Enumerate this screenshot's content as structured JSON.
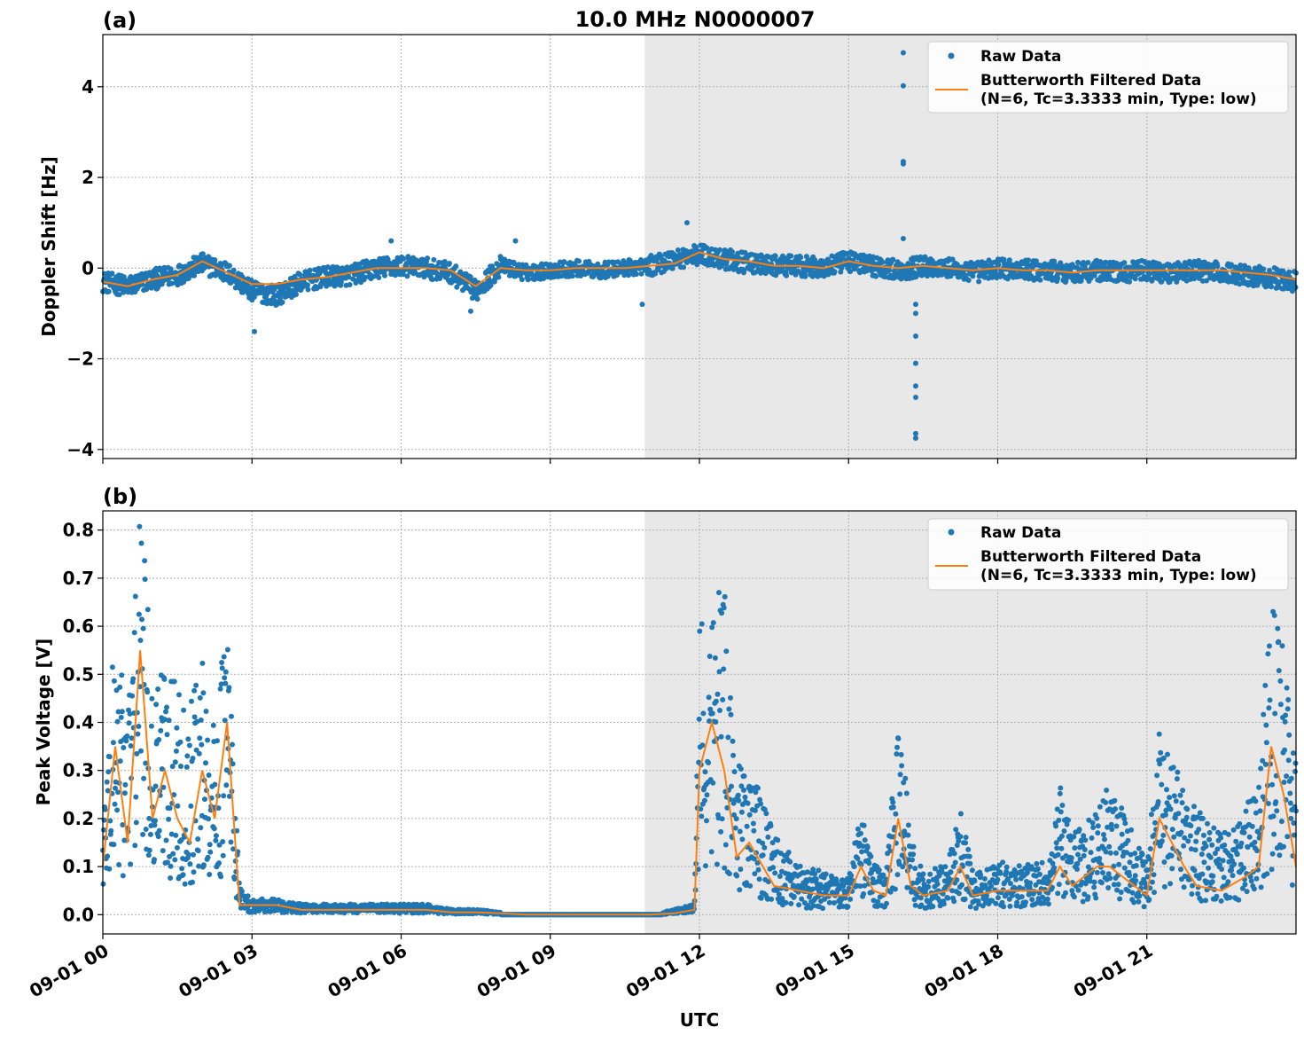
{
  "figure": {
    "title": "10.0 MHz N0000007",
    "xlabel": "UTC",
    "x_tick_labels": [
      "09-01 00",
      "09-01 03",
      "09-01 06",
      "09-01 09",
      "09-01 12",
      "09-01 15",
      "09-01 18",
      "09-01 21"
    ],
    "colors": {
      "raw": "#1f77b4",
      "filtered": "#ff7f0e",
      "night_shade": "#e8e8e8"
    }
  },
  "chart_data": [
    {
      "type": "scatter",
      "panel_label": "(a)",
      "title": "10.0 MHz N0000007",
      "xlabel": "",
      "ylabel": "Doppler Shift [Hz]",
      "x_unit": "hours UTC since 09-01 00",
      "xlim": [
        0,
        24
      ],
      "ylim": [
        -4.2,
        5.15
      ],
      "y_ticks": [
        4,
        2,
        0,
        -2,
        -4
      ],
      "y_tick_labels": [
        "4",
        "2",
        "0",
        "−2",
        "−4"
      ],
      "grid": true,
      "legend_position": "upper-right",
      "shaded_region_x": [
        10.9,
        24
      ],
      "series": [
        {
          "name": "Raw Data",
          "style": "points",
          "x": [
            0.0,
            0.5,
            1.0,
            1.5,
            2.0,
            2.5,
            3.0,
            3.5,
            4.0,
            4.5,
            5.0,
            5.5,
            6.0,
            6.5,
            7.0,
            7.5,
            8.0,
            8.5,
            9.0,
            9.5,
            10.0,
            10.5,
            11.0,
            11.5,
            12.0,
            12.5,
            13.0,
            13.5,
            14.0,
            14.5,
            15.0,
            15.5,
            16.0,
            16.5,
            17.0,
            17.5,
            18.0,
            18.5,
            19.0,
            19.5,
            20.0,
            20.5,
            21.0,
            21.5,
            22.0,
            22.5,
            23.0,
            23.5,
            24.0
          ],
          "y": [
            -0.3,
            -0.4,
            -0.25,
            -0.15,
            0.1,
            -0.1,
            -0.5,
            -0.6,
            -0.3,
            -0.2,
            -0.15,
            0.0,
            0.05,
            0.0,
            -0.1,
            -0.5,
            0.05,
            -0.1,
            -0.05,
            0.0,
            -0.05,
            0.0,
            0.05,
            0.2,
            0.3,
            0.2,
            0.1,
            0.05,
            0.05,
            0.0,
            0.15,
            0.05,
            -0.05,
            0.05,
            0.0,
            -0.1,
            0.0,
            -0.05,
            -0.05,
            -0.1,
            -0.05,
            -0.1,
            -0.05,
            -0.1,
            -0.05,
            -0.1,
            -0.15,
            -0.2,
            -0.3
          ],
          "outliers": [
            {
              "x": 16.1,
              "y": 4.75
            },
            {
              "x": 16.1,
              "y": 4.02
            },
            {
              "x": 16.1,
              "y": 2.35
            },
            {
              "x": 16.1,
              "y": 2.3
            },
            {
              "x": 16.1,
              "y": 0.65
            },
            {
              "x": 16.35,
              "y": -0.8
            },
            {
              "x": 16.35,
              "y": -1.0
            },
            {
              "x": 16.35,
              "y": -1.5
            },
            {
              "x": 16.35,
              "y": -2.1
            },
            {
              "x": 16.35,
              "y": -2.6
            },
            {
              "x": 16.35,
              "y": -2.85
            },
            {
              "x": 16.35,
              "y": -3.65
            },
            {
              "x": 16.35,
              "y": -3.75
            },
            {
              "x": 11.75,
              "y": 1.0
            },
            {
              "x": 8.3,
              "y": 0.6
            },
            {
              "x": 5.8,
              "y": 0.6
            },
            {
              "x": 3.05,
              "y": -1.4
            },
            {
              "x": 7.4,
              "y": -0.95
            },
            {
              "x": 10.85,
              "y": -0.8
            }
          ]
        },
        {
          "name": "Butterworth Filtered Data\n(N=6, Tc=3.3333 min, Type: low)",
          "style": "line",
          "x": [
            0.0,
            0.5,
            1.0,
            1.5,
            2.0,
            2.5,
            3.0,
            3.5,
            4.0,
            4.5,
            5.0,
            5.5,
            6.0,
            6.5,
            7.0,
            7.5,
            8.0,
            8.5,
            9.0,
            9.5,
            10.0,
            10.5,
            11.0,
            11.5,
            12.0,
            12.5,
            13.0,
            13.5,
            14.0,
            14.5,
            15.0,
            15.5,
            16.0,
            16.5,
            17.0,
            17.5,
            18.0,
            18.5,
            19.0,
            19.5,
            20.0,
            20.5,
            21.0,
            21.5,
            22.0,
            22.5,
            23.0,
            23.5,
            24.0
          ],
          "y": [
            -0.3,
            -0.4,
            -0.25,
            -0.15,
            0.15,
            -0.1,
            -0.35,
            -0.35,
            -0.25,
            -0.2,
            -0.1,
            0.0,
            0.0,
            0.0,
            -0.05,
            -0.4,
            0.0,
            -0.05,
            -0.05,
            0.0,
            0.0,
            0.0,
            0.05,
            0.1,
            0.35,
            0.2,
            0.15,
            0.05,
            0.05,
            0.0,
            0.15,
            0.05,
            0.0,
            0.05,
            0.0,
            -0.05,
            0.0,
            -0.05,
            -0.05,
            -0.1,
            -0.05,
            -0.05,
            -0.05,
            -0.05,
            -0.05,
            -0.05,
            -0.1,
            -0.15,
            -0.25
          ]
        }
      ]
    },
    {
      "type": "scatter",
      "panel_label": "(b)",
      "title": "",
      "xlabel": "UTC",
      "ylabel": "Peak Voltage [V]",
      "x_unit": "hours UTC since 09-01 00",
      "xlim": [
        0,
        24
      ],
      "ylim": [
        -0.04,
        0.84
      ],
      "y_ticks": [
        0.0,
        0.1,
        0.2,
        0.3,
        0.4,
        0.5,
        0.6,
        0.7,
        0.8
      ],
      "y_tick_labels": [
        "0.0",
        "0.1",
        "0.2",
        "0.3",
        "0.4",
        "0.5",
        "0.6",
        "0.7",
        "0.8"
      ],
      "grid": true,
      "legend_position": "upper-right",
      "shaded_region_x": [
        10.9,
        24
      ],
      "series": [
        {
          "name": "Raw Data",
          "style": "points",
          "x": [
            0.0,
            0.25,
            0.5,
            0.75,
            1.0,
            1.25,
            1.5,
            1.75,
            2.0,
            2.25,
            2.5,
            2.75,
            3.0,
            3.5,
            4.0,
            4.5,
            5.0,
            5.5,
            6.0,
            6.5,
            7.0,
            7.5,
            8.0,
            8.5,
            9.0,
            9.5,
            10.0,
            10.5,
            11.0,
            11.5,
            11.9,
            12.0,
            12.25,
            12.5,
            12.75,
            13.0,
            13.5,
            14.0,
            14.5,
            15.0,
            15.25,
            15.5,
            15.75,
            16.0,
            16.25,
            16.5,
            17.0,
            17.25,
            17.5,
            18.0,
            18.5,
            19.0,
            19.25,
            19.5,
            20.0,
            20.25,
            20.5,
            20.75,
            21.0,
            21.25,
            21.5,
            21.75,
            22.0,
            22.5,
            23.0,
            23.25,
            23.5,
            23.75,
            24.0
          ],
          "y": [
            0.2,
            0.55,
            0.4,
            0.8,
            0.45,
            0.5,
            0.45,
            0.4,
            0.5,
            0.35,
            0.6,
            0.05,
            0.03,
            0.03,
            0.02,
            0.02,
            0.02,
            0.02,
            0.02,
            0.02,
            0.01,
            0.01,
            0.005,
            0.0,
            0.0,
            0.0,
            0.0,
            0.0,
            0.0,
            0.01,
            0.02,
            0.55,
            0.6,
            0.65,
            0.3,
            0.3,
            0.15,
            0.1,
            0.08,
            0.07,
            0.2,
            0.1,
            0.08,
            0.4,
            0.15,
            0.08,
            0.1,
            0.2,
            0.08,
            0.1,
            0.1,
            0.1,
            0.25,
            0.15,
            0.2,
            0.25,
            0.2,
            0.15,
            0.1,
            0.35,
            0.3,
            0.25,
            0.2,
            0.15,
            0.2,
            0.3,
            0.6,
            0.5,
            0.3
          ]
        },
        {
          "name": "Butterworth Filtered Data\n(N=6, Tc=3.3333 min, Type: low)",
          "style": "line",
          "x": [
            0.0,
            0.25,
            0.5,
            0.75,
            1.0,
            1.25,
            1.5,
            1.75,
            2.0,
            2.25,
            2.5,
            2.75,
            3.0,
            3.5,
            4.0,
            4.5,
            5.0,
            5.5,
            6.0,
            6.5,
            7.0,
            7.5,
            8.0,
            8.5,
            9.0,
            9.5,
            10.0,
            10.5,
            11.0,
            11.5,
            11.9,
            12.0,
            12.25,
            12.5,
            12.75,
            13.0,
            13.5,
            14.0,
            14.5,
            15.0,
            15.25,
            15.5,
            15.75,
            16.0,
            16.25,
            16.5,
            17.0,
            17.25,
            17.5,
            18.0,
            18.5,
            19.0,
            19.25,
            19.5,
            20.0,
            20.25,
            20.5,
            20.75,
            21.0,
            21.25,
            21.5,
            21.75,
            22.0,
            22.5,
            23.0,
            23.25,
            23.5,
            23.75,
            24.0
          ],
          "y": [
            0.1,
            0.35,
            0.15,
            0.55,
            0.2,
            0.3,
            0.2,
            0.15,
            0.3,
            0.2,
            0.4,
            0.02,
            0.02,
            0.02,
            0.01,
            0.01,
            0.01,
            0.01,
            0.01,
            0.01,
            0.005,
            0.005,
            0.003,
            0.0,
            0.0,
            0.0,
            0.0,
            0.0,
            0.0,
            0.003,
            0.01,
            0.3,
            0.4,
            0.3,
            0.12,
            0.15,
            0.06,
            0.05,
            0.04,
            0.04,
            0.1,
            0.05,
            0.04,
            0.2,
            0.06,
            0.04,
            0.05,
            0.1,
            0.04,
            0.05,
            0.05,
            0.05,
            0.1,
            0.06,
            0.1,
            0.1,
            0.08,
            0.06,
            0.04,
            0.2,
            0.15,
            0.1,
            0.06,
            0.05,
            0.08,
            0.1,
            0.35,
            0.25,
            0.1
          ]
        }
      ]
    }
  ]
}
